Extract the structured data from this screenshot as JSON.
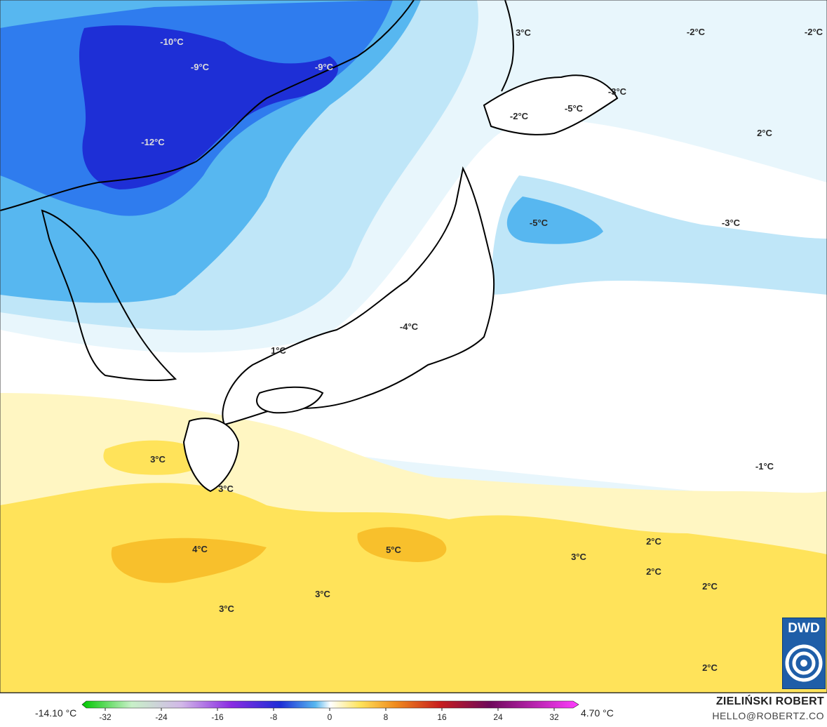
{
  "map": {
    "labels": [
      {
        "text": "-10°C",
        "tone": "light"
      },
      {
        "text": "-9°C",
        "tone": "light"
      },
      {
        "text": "-9°C",
        "tone": "light"
      },
      {
        "text": "-12°C",
        "tone": "light"
      },
      {
        "text": "3°C",
        "tone": "dark"
      },
      {
        "text": "-2°C",
        "tone": "dark"
      },
      {
        "text": "-2°C",
        "tone": "dark"
      },
      {
        "text": "-3°C",
        "tone": "dark"
      },
      {
        "text": "-5°C",
        "tone": "dark"
      },
      {
        "text": "-2°C",
        "tone": "dark"
      },
      {
        "text": "2°C",
        "tone": "dark"
      },
      {
        "text": "-5°C",
        "tone": "dark"
      },
      {
        "text": "-3°C",
        "tone": "dark"
      },
      {
        "text": "-4°C",
        "tone": "dark"
      },
      {
        "text": "1°C",
        "tone": "dark"
      },
      {
        "text": "-1°C",
        "tone": "dark"
      },
      {
        "text": "3°C",
        "tone": "dark"
      },
      {
        "text": "3°C",
        "tone": "dark"
      },
      {
        "text": "4°C",
        "tone": "dark"
      },
      {
        "text": "5°C",
        "tone": "dark"
      },
      {
        "text": "3°C",
        "tone": "dark"
      },
      {
        "text": "2°C",
        "tone": "dark"
      },
      {
        "text": "2°C",
        "tone": "dark"
      },
      {
        "text": "2°C",
        "tone": "dark"
      },
      {
        "text": "3°C",
        "tone": "dark"
      },
      {
        "text": "3°C",
        "tone": "dark"
      },
      {
        "text": "2°C",
        "tone": "dark"
      }
    ]
  },
  "legend": {
    "min_label": "-14.10 °C",
    "max_label": "4.70 °C",
    "ticks": [
      "-32",
      "-24",
      "-16",
      "-8",
      "0",
      "8",
      "16",
      "24",
      "32"
    ]
  },
  "credit": {
    "name": "ZIELIŃSKI ROBERT",
    "email": "HELLO@ROBERTZ.CO"
  },
  "logo": {
    "text": "DWD"
  },
  "colors": {
    "very_cold": "#1e2fd6",
    "cold": "#2f7cee",
    "cool": "#57b7f0",
    "light_blue": "#bfe6f8",
    "pale_blue": "#e8f6fc",
    "warm_pale": "#fff6c2",
    "warm": "#ffe35a",
    "warmer": "#f8c02c"
  }
}
